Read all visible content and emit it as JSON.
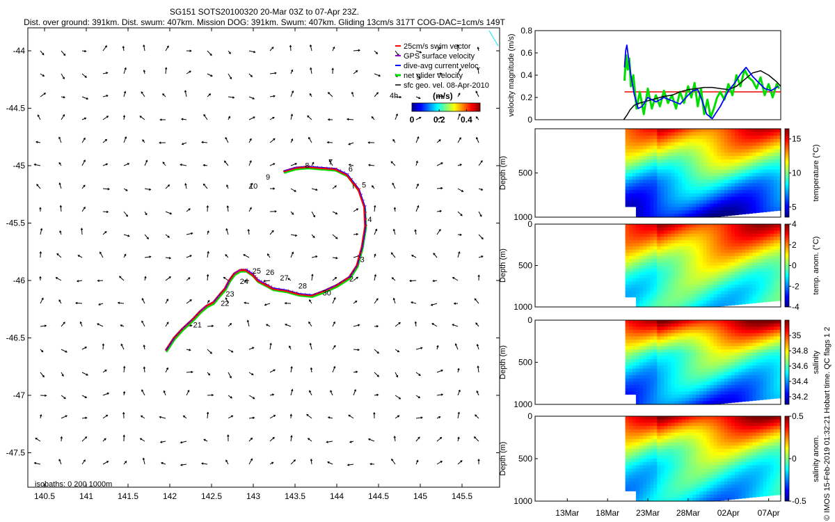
{
  "title": {
    "line1": "SG151 SOTS20100320 20-Mar 03Z to 07-Apr 23Z.",
    "line2": "Dist. over ground: 391km. Dist. swum: 407km. Mission DOG: 391km. Swum: 407km. Gliding 13cm/s 317T COG-DAC=1cm/s 149T"
  },
  "copyright": "© IMOS 15-Feb-2019 01:32:21 Hobart time. QC flags 1  2",
  "colors": {
    "swim": "#ff0000",
    "gps": "#9900cc",
    "dac": "#0000ff",
    "net": "#00dd00",
    "geo": "#000000",
    "mean_line": "#ee0000"
  },
  "chart_data": [
    {
      "type": "map",
      "name": "glider track and velocity vectors",
      "x_ticks": [
        "140.5",
        "141",
        "141.5",
        "142",
        "142.5",
        "143",
        "143.5",
        "144",
        "144.5",
        "145",
        "145.5"
      ],
      "x_tick_values": [
        140.5,
        141,
        141.5,
        142,
        142.5,
        143,
        143.5,
        144,
        144.5,
        145,
        145.5
      ],
      "y_ticks": [
        "-44",
        "-44.5",
        "-45",
        "-45.5",
        "-46",
        "-46.5",
        "-47",
        "-47.5"
      ],
      "y_tick_values": [
        -44,
        -44.5,
        -45,
        -45.5,
        -46,
        -46.5,
        -47,
        -47.5
      ],
      "xlim": [
        140.3,
        145.95
      ],
      "ylim": [
        -47.8,
        -43.8
      ],
      "legend": [
        {
          "label": "25cm/s swim vector",
          "symbol": "swim"
        },
        {
          "label": "GPS surface velocity",
          "symbol": "gps"
        },
        {
          "label": "dive-avg current veloc.",
          "symbol": "dac"
        },
        {
          "label": "net glider velocity",
          "symbol": "net"
        },
        {
          "label": "sfc geo. vel. 08-Apr-2010",
          "symbol": "geo"
        }
      ],
      "colorbar": {
        "title": "(m/s)",
        "side_label": "4h",
        "ticks": [
          "0",
          "0.2",
          "0.4"
        ],
        "tick_values": [
          0,
          0.2,
          0.4
        ],
        "range": [
          0,
          0.5
        ]
      },
      "isobaths": "isobaths: 0   200  1000m",
      "track_lonlat": [
        [
          141.95,
          -46.61
        ],
        [
          142.05,
          -46.5
        ],
        [
          142.15,
          -46.42
        ],
        [
          142.27,
          -46.34
        ],
        [
          142.36,
          -46.27
        ],
        [
          142.44,
          -46.22
        ],
        [
          142.52,
          -46.19
        ],
        [
          142.6,
          -46.12
        ],
        [
          142.66,
          -46.07
        ],
        [
          142.71,
          -46.0
        ],
        [
          142.77,
          -45.94
        ],
        [
          142.84,
          -45.91
        ],
        [
          142.91,
          -45.91
        ],
        [
          142.99,
          -45.95
        ],
        [
          143.05,
          -46.0
        ],
        [
          143.13,
          -46.03
        ],
        [
          143.23,
          -46.07
        ],
        [
          143.4,
          -46.09
        ],
        [
          143.55,
          -46.12
        ],
        [
          143.7,
          -46.13
        ],
        [
          143.85,
          -46.09
        ],
        [
          144.0,
          -46.04
        ],
        [
          144.15,
          -45.97
        ],
        [
          144.24,
          -45.87
        ],
        [
          144.3,
          -45.71
        ],
        [
          144.34,
          -45.53
        ],
        [
          144.33,
          -45.36
        ],
        [
          144.26,
          -45.21
        ],
        [
          144.12,
          -45.08
        ],
        [
          143.98,
          -45.03
        ],
        [
          143.8,
          -45.02
        ],
        [
          143.65,
          -45.01
        ],
        [
          143.5,
          -45.02
        ],
        [
          143.36,
          -45.05
        ]
      ],
      "day_labels": [
        {
          "label": "21",
          "lon": 142.28,
          "lat": -46.41
        },
        {
          "label": "22",
          "lon": 142.61,
          "lat": -46.22
        },
        {
          "label": "23",
          "lon": 142.67,
          "lat": -46.14
        },
        {
          "label": "24",
          "lon": 142.84,
          "lat": -46.03
        },
        {
          "label": "25",
          "lon": 142.99,
          "lat": -45.94
        },
        {
          "label": "26",
          "lon": 143.15,
          "lat": -45.95
        },
        {
          "label": "27",
          "lon": 143.32,
          "lat": -46.0
        },
        {
          "label": "28",
          "lon": 143.54,
          "lat": -46.07
        },
        {
          "label": "30",
          "lon": 143.83,
          "lat": -46.13
        },
        {
          "label": "2",
          "lon": 144.15,
          "lat": -46.01
        },
        {
          "label": "3",
          "lon": 144.28,
          "lat": -45.84
        },
        {
          "label": "4",
          "lon": 144.37,
          "lat": -45.49
        },
        {
          "label": "5",
          "lon": 144.3,
          "lat": -45.19
        },
        {
          "label": "6",
          "lon": 144.14,
          "lat": -45.05
        },
        {
          "label": "7",
          "lon": 143.9,
          "lat": -44.99
        },
        {
          "label": "8",
          "lon": 143.62,
          "lat": -45.02
        },
        {
          "label": "9",
          "lon": 143.15,
          "lat": -45.12
        },
        {
          "label": "10",
          "lon": 142.95,
          "lat": -45.2
        }
      ]
    },
    {
      "type": "line",
      "name": "velocity magnitude time series",
      "ylabel": "velocity magnitude (m/s)",
      "ylim": [
        0,
        0.8
      ],
      "y_ticks": [
        "0",
        "0.2",
        "0.4",
        "0.6",
        "0.8"
      ],
      "y_tick_values": [
        0,
        0.2,
        0.4,
        0.6,
        0.8
      ],
      "xlim_days": [
        9,
        39.5
      ],
      "x_ticks": [
        "13Mar",
        "18Mar",
        "23Mar",
        "28Mar",
        "02Apr",
        "07Apr"
      ],
      "x_tick_days": [
        13,
        18,
        23,
        28,
        33,
        38
      ],
      "mean_speed": 0.25,
      "series": [
        {
          "name": "dive-avg current veloc.",
          "color_key": "dac",
          "x": [
            20.1,
            20.25,
            20.4,
            20.6,
            20.9,
            21.3,
            21.8,
            22.3,
            23.0,
            24.0,
            25.0,
            26.0,
            27.0,
            28.0,
            28.6,
            29.2,
            29.7,
            30.3,
            31.0,
            32.0,
            33.0,
            33.8,
            34.5,
            35.2,
            36.0,
            36.8,
            37.5,
            38.3,
            39.2
          ],
          "y": [
            0.47,
            0.62,
            0.67,
            0.55,
            0.4,
            0.23,
            0.1,
            0.12,
            0.2,
            0.16,
            0.2,
            0.17,
            0.14,
            0.22,
            0.26,
            0.27,
            0.18,
            0.05,
            0.01,
            0.12,
            0.26,
            0.33,
            0.41,
            0.47,
            0.39,
            0.33,
            0.28,
            0.26,
            0.3
          ]
        },
        {
          "name": "net glider velocity",
          "color_key": "net",
          "x": [
            20.1,
            20.3,
            20.5,
            20.7,
            20.9,
            21.2,
            21.6,
            22.0,
            22.5,
            23.0,
            23.5,
            24.0,
            24.5,
            25.0,
            25.5,
            26.0,
            26.5,
            27.0,
            27.5,
            28.0,
            28.4,
            28.8,
            29.2,
            29.6,
            30.0,
            30.4,
            30.8,
            31.2,
            31.6,
            32.0,
            32.5,
            33.0,
            33.5,
            34.0,
            34.5,
            35.0,
            35.5,
            36.0,
            36.5,
            37.0,
            37.5,
            38.0,
            38.5,
            39.0,
            39.3
          ],
          "y": [
            0.35,
            0.58,
            0.45,
            0.55,
            0.3,
            0.4,
            0.1,
            0.25,
            0.05,
            0.28,
            0.1,
            0.22,
            0.12,
            0.26,
            0.15,
            0.22,
            0.1,
            0.25,
            0.15,
            0.3,
            0.2,
            0.33,
            0.12,
            0.28,
            0.05,
            0.18,
            0.02,
            0.1,
            0.2,
            0.25,
            0.18,
            0.32,
            0.22,
            0.4,
            0.3,
            0.45,
            0.38,
            0.35,
            0.28,
            0.38,
            0.22,
            0.32,
            0.2,
            0.32,
            0.28
          ]
        },
        {
          "name": "sfc geo. vel.",
          "color_key": "geo",
          "x": [
            20.0,
            20.4,
            20.8,
            21.3,
            22.0,
            23.0,
            24.0,
            25.0,
            26.0,
            27.0,
            28.0,
            29.0,
            30.0,
            31.0,
            32.0,
            33.0,
            34.0,
            35.0,
            36.0,
            37.0,
            38.0,
            39.0,
            39.5
          ],
          "y": [
            0.0,
            0.04,
            0.09,
            0.13,
            0.15,
            0.17,
            0.19,
            0.21,
            0.22,
            0.25,
            0.27,
            0.28,
            0.29,
            0.29,
            0.28,
            0.27,
            0.3,
            0.36,
            0.42,
            0.44,
            0.4,
            0.34,
            0.3
          ]
        }
      ]
    },
    {
      "type": "heatmap",
      "name": "temperature section",
      "ylabel": "Depth (m)",
      "y_ticks": [
        "500",
        "1000"
      ],
      "y_tick_values": [
        500,
        1000
      ],
      "ylim_depth": [
        0,
        1000
      ],
      "data_start_day": 20.2,
      "colorbar_label": "temperature (°C)",
      "colorbar_ticks": [
        "5",
        "10",
        "15"
      ],
      "colorbar_tick_values": [
        5,
        10,
        15
      ],
      "colorbar_range": [
        3.5,
        16.5
      ],
      "profile": {
        "depth": [
          0,
          150,
          300,
          450,
          600,
          800,
          1000
        ],
        "value": [
          13.5,
          12.0,
          10.5,
          9.0,
          7.5,
          6.0,
          4.5
        ]
      }
    },
    {
      "type": "heatmap",
      "name": "temperature anomaly section",
      "ylabel": "Depth (m)",
      "y_ticks": [
        "0",
        "500",
        "1000"
      ],
      "y_tick_values": [
        0,
        500,
        1000
      ],
      "ylim_depth": [
        0,
        1000
      ],
      "data_start_day": 20.2,
      "colorbar_label": "temp. anom. (°C)",
      "colorbar_ticks": [
        "-4",
        "-2",
        "0",
        "2",
        "4"
      ],
      "colorbar_tick_values": [
        -4,
        -2,
        0,
        2,
        4
      ],
      "colorbar_range": [
        -4,
        4
      ],
      "profile": {
        "depth": [
          0,
          200,
          400,
          600,
          800,
          1000
        ],
        "value": [
          2.5,
          1.5,
          0.5,
          -0.3,
          -0.8,
          -1.0
        ]
      }
    },
    {
      "type": "heatmap",
      "name": "salinity section",
      "ylabel": "Depth (m)",
      "y_ticks": [
        "0",
        "500",
        "1000"
      ],
      "y_tick_values": [
        0,
        500,
        1000
      ],
      "ylim_depth": [
        0,
        1000
      ],
      "data_start_day": 20.2,
      "colorbar_label": "salinity",
      "colorbar_ticks": [
        "34.2",
        "34.4",
        "34.6",
        "34.8",
        "35"
      ],
      "colorbar_tick_values": [
        34.2,
        34.4,
        34.6,
        34.8,
        35.0
      ],
      "colorbar_range": [
        34.1,
        35.2
      ],
      "profile": {
        "depth": [
          0,
          200,
          400,
          600,
          800,
          1000
        ],
        "value": [
          35.05,
          34.8,
          34.6,
          34.5,
          34.4,
          34.3
        ]
      }
    },
    {
      "type": "heatmap",
      "name": "salinity anomaly section",
      "ylabel": "Depth (m)",
      "y_ticks": [
        "0",
        "500",
        "1000"
      ],
      "y_tick_values": [
        0,
        500,
        1000
      ],
      "ylim_depth": [
        0,
        1000
      ],
      "data_start_day": 20.2,
      "colorbar_label": "salinity anom.",
      "colorbar_ticks": [
        "-0.5",
        "0",
        "0.5"
      ],
      "colorbar_tick_values": [
        -0.5,
        0,
        0.5
      ],
      "colorbar_range": [
        -0.5,
        0.5
      ],
      "profile": {
        "depth": [
          0,
          200,
          400,
          600,
          800,
          1000
        ],
        "value": [
          0.35,
          0.15,
          0.0,
          -0.1,
          -0.15,
          -0.2
        ]
      }
    }
  ]
}
